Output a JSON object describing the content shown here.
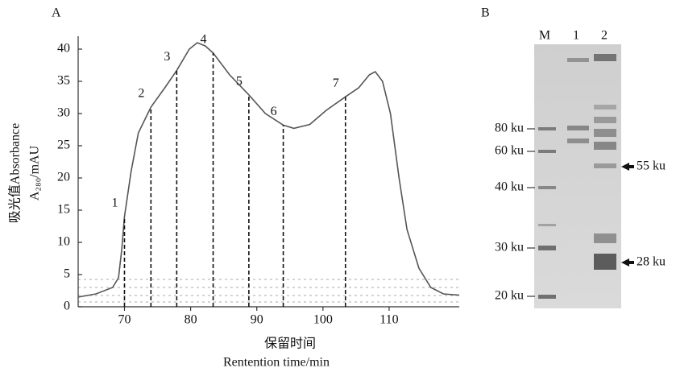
{
  "chart_data": {
    "type": "line",
    "panel": "A",
    "x_label": [
      "保留时间",
      "Rentention time/min"
    ],
    "y_label": [
      "吸光值Absorbance",
      "A₂₈₀/mAU"
    ],
    "x": [
      63,
      65.7,
      68.2,
      69.1,
      69.6,
      70,
      71,
      72.1,
      74,
      76.1,
      77.9,
      79.8,
      81,
      82.2,
      83.4,
      85.9,
      88.8,
      91.3,
      94,
      95.6,
      98,
      100.5,
      103.4,
      105.4,
      107,
      107.9,
      109,
      110.2,
      111.5,
      112.7,
      114.5,
      116.3,
      118.2,
      120.6
    ],
    "values": [
      1.5,
      2,
      3,
      4.5,
      9,
      14,
      21,
      27,
      31,
      34,
      36.7,
      40,
      41,
      40.5,
      39.4,
      36,
      32.9,
      30,
      28.2,
      27.7,
      28.3,
      30.5,
      32.6,
      34,
      36,
      36.5,
      35,
      30,
      20,
      12,
      6,
      3,
      2,
      1.8
    ],
    "color": "#555555",
    "xlim": [
      63,
      120.6
    ],
    "xticks": [
      70,
      80,
      90,
      100,
      110
    ],
    "ylim": [
      0,
      42
    ],
    "yticks": [
      0,
      5,
      10,
      15,
      20,
      25,
      30,
      35,
      40
    ],
    "fractions": [
      {
        "label": "1",
        "x": 70
      },
      {
        "label": "2",
        "x": 74
      },
      {
        "label": "3",
        "x": 77.9
      },
      {
        "label": "4",
        "x": 83.4
      },
      {
        "label": "5",
        "x": 88.8
      },
      {
        "label": "6",
        "x": 94
      },
      {
        "label": "7",
        "x": 103.4
      }
    ]
  },
  "panel_b": {
    "label": "B",
    "lanes": [
      "M",
      "1",
      "2"
    ],
    "markers": [
      "80 ku",
      "60 ku",
      "40 ku",
      "30 ku",
      "20 ku"
    ],
    "arrows": [
      "55 ku",
      "28 ku"
    ]
  }
}
